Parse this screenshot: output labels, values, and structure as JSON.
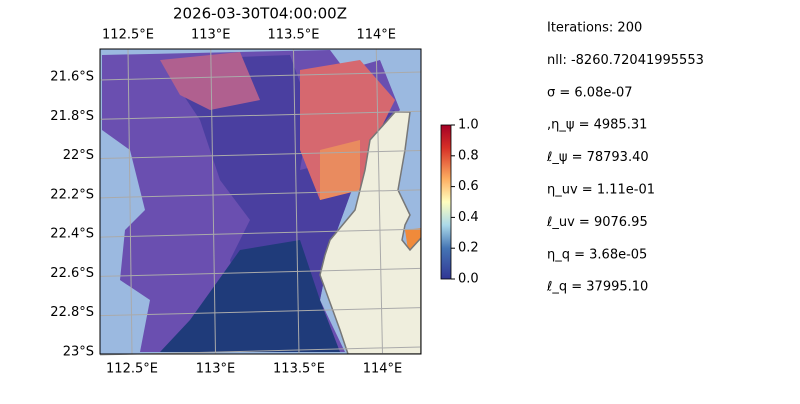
{
  "title": "2026-03-30T04:00:00Z",
  "lon_ticks": [
    {
      "value": 112.5,
      "label": "112.5°E"
    },
    {
      "value": 113,
      "label": "113°E"
    },
    {
      "value": 113.5,
      "label": "113.5°E"
    },
    {
      "value": 114,
      "label": "114°E"
    }
  ],
  "lat_ticks": [
    {
      "value": -21.6,
      "label": "21.6°S"
    },
    {
      "value": -21.8,
      "label": "21.8°S"
    },
    {
      "value": -22,
      "label": "22°S"
    },
    {
      "value": -22.2,
      "label": "22.2°S"
    },
    {
      "value": -22.4,
      "label": "22.4°S"
    },
    {
      "value": -22.6,
      "label": "22.6°S"
    },
    {
      "value": -22.8,
      "label": "22.8°S"
    },
    {
      "value": -23,
      "label": "23°S"
    }
  ],
  "colorbar": {
    "lim": [
      0,
      1
    ],
    "ticks": [
      {
        "value": 0,
        "label": "0.0"
      },
      {
        "value": 0.2,
        "label": "0.2"
      },
      {
        "value": 0.4,
        "label": "0.4"
      },
      {
        "value": 0.6,
        "label": "0.6"
      },
      {
        "value": 0.8,
        "label": "0.8"
      },
      {
        "value": 1,
        "label": "1.0"
      }
    ]
  },
  "stats": [
    "Iterations: 200",
    "nll: -8260.72041995553",
    "σ = 6.08e-07",
    ",η_ψ = 4985.31",
    "ℓ_ψ = 78793.40",
    "η_uv = 1.11e-01",
    "ℓ_uv = 9076.95",
    "η_q = 3.68e-05",
    "ℓ_q = 37995.10"
  ]
}
